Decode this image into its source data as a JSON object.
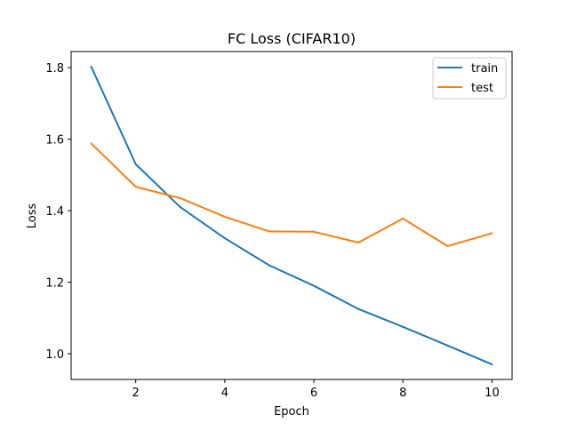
{
  "chart_data": {
    "type": "line",
    "title": "FC Loss (CIFAR10)",
    "xlabel": "Epoch",
    "ylabel": "Loss",
    "x": [
      1,
      2,
      3,
      4,
      5,
      6,
      7,
      8,
      9,
      10
    ],
    "series": [
      {
        "name": "train",
        "color": "#1f77b4",
        "values": [
          1.803,
          1.53,
          1.41,
          1.323,
          1.247,
          1.19,
          1.125,
          1.075,
          1.023,
          0.97
        ]
      },
      {
        "name": "test",
        "color": "#ff7f0e",
        "values": [
          1.588,
          1.467,
          1.435,
          1.383,
          1.342,
          1.341,
          1.311,
          1.378,
          1.301,
          1.337
        ]
      }
    ],
    "xlim": [
      0.55,
      10.45
    ],
    "ylim": [
      0.928,
      1.845
    ],
    "xticks": [
      "2",
      "4",
      "6",
      "8",
      "10"
    ],
    "yticks": [
      "1.0",
      "1.2",
      "1.4",
      "1.6",
      "1.8"
    ],
    "grid": false,
    "legend_position": "top-right"
  }
}
